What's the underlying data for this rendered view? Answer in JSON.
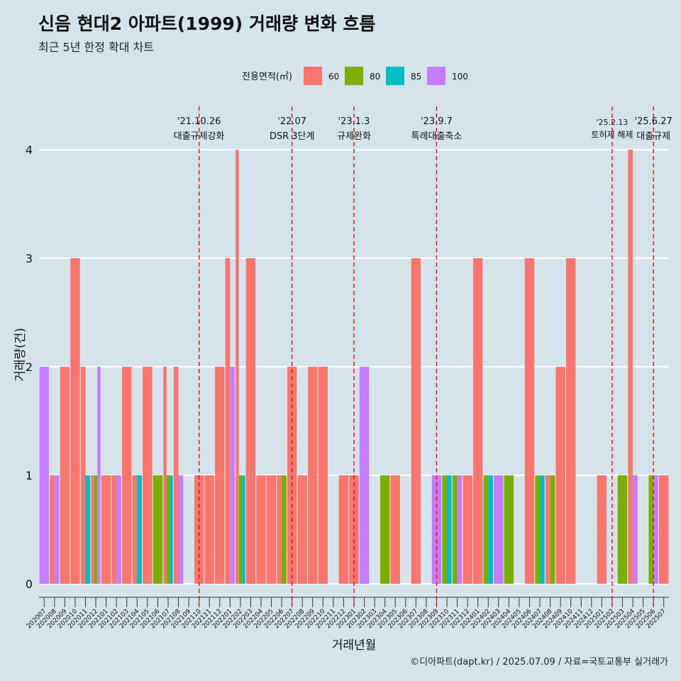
{
  "header": {
    "title": "신음 현대2 아파트(1999) 거래량 변화 흐름",
    "subtitle": "최근 5년 한정 확대 차트"
  },
  "caption": "©디아파트(dapt.kr) / 2025.07.09 / 자료=국토교통부 실거래가",
  "chart_data": {
    "type": "bar",
    "title": "신음 현대2 아파트(1999) 거래량 변화 흐름",
    "subtitle": "최근 5년 한정 확대 차트",
    "xlabel": "거래년월",
    "ylabel": "거래량(건)",
    "ylim": [
      0,
      4
    ],
    "yticks": [
      0,
      1,
      2,
      3,
      4
    ],
    "grid": true,
    "legend": {
      "title": "전용면적(㎡)",
      "position": "top",
      "entries": [
        {
          "name": "60",
          "color": "#F8766D"
        },
        {
          "name": "80",
          "color": "#7CAE00"
        },
        {
          "name": "85",
          "color": "#00BFC4"
        },
        {
          "name": "100",
          "color": "#C77CFF"
        }
      ]
    },
    "categories": [
      "202007",
      "202008",
      "202009",
      "202010",
      "202011",
      "202012",
      "202101",
      "202102",
      "202103",
      "202104",
      "202105",
      "202106",
      "202107",
      "202108",
      "202109",
      "202110",
      "202111",
      "202112",
      "202201",
      "202202",
      "202203",
      "202204",
      "202205",
      "202206",
      "202207",
      "202208",
      "202209",
      "202210",
      "202211",
      "202212",
      "202301",
      "202302",
      "202303",
      "202304",
      "202305",
      "202306",
      "202307",
      "202308",
      "202309",
      "202310",
      "202311",
      "202312",
      "202401",
      "202402",
      "202403",
      "202404",
      "202405",
      "202406",
      "202407",
      "202408",
      "202409",
      "202410",
      "202411",
      "202412",
      "202501",
      "202502",
      "202503",
      "202504",
      "202505",
      "202506",
      "202507"
    ],
    "series": [
      {
        "name": "60",
        "color": "#F8766D",
        "values": [
          0,
          1,
          2,
          3,
          2,
          1,
          1,
          1,
          2,
          1,
          2,
          0,
          2,
          2,
          0,
          1,
          1,
          2,
          3,
          4,
          3,
          1,
          1,
          1,
          2,
          1,
          2,
          2,
          0,
          1,
          1,
          0,
          0,
          0,
          1,
          0,
          3,
          0,
          0,
          0,
          0,
          1,
          3,
          0,
          0,
          0,
          0,
          3,
          0,
          1,
          2,
          3,
          0,
          0,
          1,
          0,
          0,
          4,
          0,
          0,
          1
        ]
      },
      {
        "name": "80",
        "color": "#7CAE00",
        "values": [
          0,
          0,
          0,
          0,
          0,
          1,
          0,
          0,
          0,
          0,
          0,
          1,
          1,
          0,
          0,
          0,
          0,
          0,
          0,
          1,
          0,
          0,
          0,
          1,
          0,
          0,
          0,
          0,
          0,
          0,
          0,
          0,
          0,
          1,
          0,
          0,
          0,
          0,
          0,
          1,
          1,
          0,
          0,
          1,
          0,
          1,
          0,
          0,
          1,
          1,
          0,
          0,
          0,
          0,
          0,
          0,
          1,
          0,
          0,
          1,
          0
        ]
      },
      {
        "name": "85",
        "color": "#00BFC4",
        "values": [
          0,
          0,
          0,
          0,
          1,
          0,
          0,
          0,
          0,
          1,
          0,
          0,
          1,
          0,
          0,
          0,
          0,
          0,
          0,
          1,
          0,
          0,
          0,
          0,
          0,
          0,
          0,
          0,
          0,
          0,
          0,
          0,
          0,
          0,
          0,
          0,
          0,
          0,
          0,
          1,
          0,
          0,
          0,
          1,
          0,
          0,
          0,
          0,
          1,
          0,
          0,
          0,
          0,
          0,
          0,
          0,
          0,
          0,
          0,
          0,
          0
        ]
      },
      {
        "name": "100",
        "color": "#C77CFF",
        "values": [
          2,
          1,
          0,
          0,
          0,
          2,
          0,
          1,
          0,
          0,
          0,
          0,
          0,
          1,
          0,
          0,
          0,
          0,
          2,
          0,
          0,
          0,
          0,
          0,
          0,
          0,
          0,
          0,
          0,
          0,
          0,
          2,
          0,
          0,
          0,
          0,
          0,
          0,
          1,
          0,
          1,
          0,
          0,
          0,
          1,
          0,
          0,
          0,
          0,
          0,
          0,
          0,
          0,
          0,
          0,
          0,
          0,
          1,
          0,
          1,
          0
        ]
      }
    ],
    "annotations": [
      {
        "date": "'21.10.26",
        "label": "대출규제강화",
        "at": "202110"
      },
      {
        "date": "'22.07",
        "label": "DSR 3단계",
        "at": "202207"
      },
      {
        "date": "'23.1.3",
        "label": "규제완화",
        "at": "202301"
      },
      {
        "date": "'23.9.7",
        "label": "특례대출축소",
        "at": "202309"
      },
      {
        "date": "'25.2.13",
        "label": "토허제 해제",
        "at": "202502"
      },
      {
        "date": "'25.6.27",
        "label": "대출규제",
        "at": "202506"
      }
    ]
  }
}
